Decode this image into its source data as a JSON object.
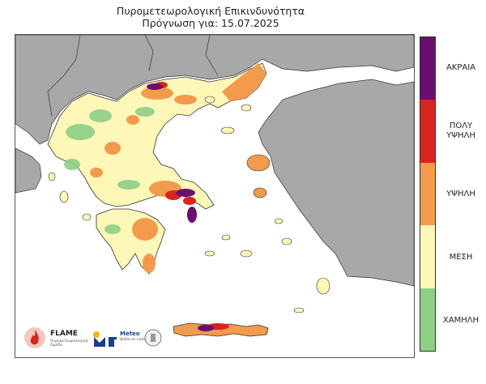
{
  "title": {
    "line1": "Πυρομετεωρολογική Επικινδυνότητα",
    "line2": "Πρόγνωση για: 15.07.2025"
  },
  "legend": {
    "levels": [
      {
        "label": "ΑΚΡΑΙΑ",
        "color": "#6a0f6e"
      },
      {
        "label": "ΠΟΛΥ ΥΨΗΛΗ",
        "color": "#d7241f"
      },
      {
        "label": "ΥΨΗΛΗ",
        "color": "#f39a4d"
      },
      {
        "label": "ΜΕΣΗ",
        "color": "#fdf7b8"
      },
      {
        "label": "ΧΑΜΗΛΗ",
        "color": "#8fcf86"
      }
    ]
  },
  "logos": {
    "flame_name": "FLAME",
    "flame_sub": "Πυρομετεωρολογική Ομάδα",
    "meteo_name": "Meteo",
    "meteo_sub": "Δίπλα σε εσάς"
  },
  "colors": {
    "sea": "#ffffff",
    "foreign_land": "#a8a8a8",
    "border": "#333333"
  }
}
